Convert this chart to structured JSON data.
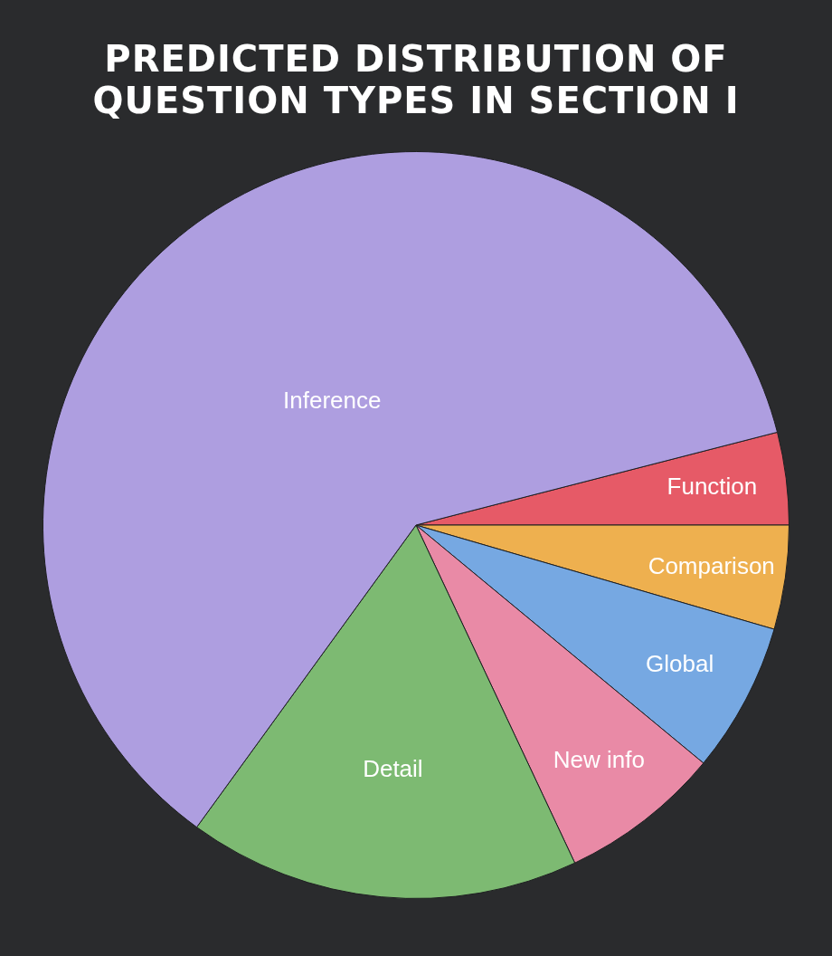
{
  "chart_data": {
    "type": "pie",
    "title": "PREDICTED DISTRIBUTION OF QUESTION TYPES IN SECTION I",
    "categories": [
      "Function",
      "Comparison",
      "Global",
      "New info",
      "Detail",
      "Inference"
    ],
    "values": [
      4,
      4.5,
      6.5,
      7,
      17,
      61
    ],
    "colors": [
      "#e65a67",
      "#eeb04f",
      "#76a8e2",
      "#e98aa6",
      "#7dba72",
      "#ae9ee0"
    ],
    "data_labels": false,
    "legend": false
  }
}
